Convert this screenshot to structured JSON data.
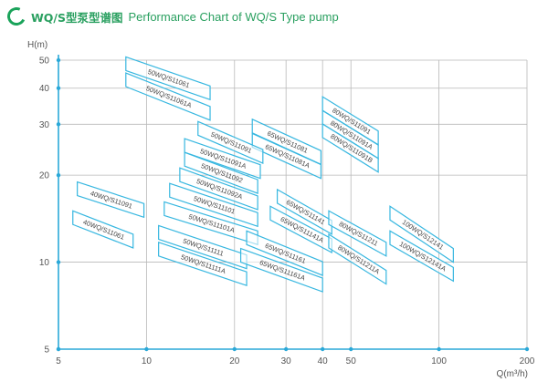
{
  "header": {
    "title_cn": "WQ/S型泵型谱图",
    "title_en": "Performance Chart of WQ/S Type pump"
  },
  "colors": {
    "axis": "#2aa8d8",
    "grid": "#b8b8b8",
    "zone": "#37b7e0",
    "title": "#2aa060"
  },
  "chart_data": {
    "type": "area",
    "title": "Performance Chart of WQ/S Type pump",
    "xlabel": "Q(m³/h)",
    "ylabel": "H(m)",
    "x_scale": "log",
    "y_scale": "log",
    "xlim": [
      5,
      200
    ],
    "ylim": [
      5,
      50
    ],
    "x_ticks": [
      5,
      10,
      20,
      30,
      40,
      50,
      100,
      200
    ],
    "y_ticks": [
      5,
      10,
      20,
      30,
      40,
      50
    ],
    "grid": true,
    "zones": [
      {
        "name": "50WQ/S11061",
        "q": [
          8.5,
          16.5
        ],
        "h_left": 46.0,
        "h_right": 36.5
      },
      {
        "name": "50WQ/S11061A",
        "q": [
          8.5,
          16.5
        ],
        "h_left": 40.5,
        "h_right": 31.0
      },
      {
        "name": "65WQ/S11081",
        "q": [
          23.0,
          39.5
        ],
        "h_left": 28.0,
        "h_right": 21.8
      },
      {
        "name": "65WQ/S11081A",
        "q": [
          23.0,
          39.5
        ],
        "h_left": 25.0,
        "h_right": 19.5
      },
      {
        "name": "80WQ/S11091",
        "q": [
          40.0,
          62.0
        ],
        "h_left": 33.5,
        "h_right": 25.5
      },
      {
        "name": "80WQ/S11091A",
        "q": [
          40.0,
          62.0
        ],
        "h_left": 30.0,
        "h_right": 22.8
      },
      {
        "name": "80WQ/S11091B",
        "q": [
          40.0,
          62.0
        ],
        "h_left": 27.0,
        "h_right": 20.5
      },
      {
        "name": "50WQ/S11091",
        "q": [
          15.0,
          25.0
        ],
        "h_left": 27.5,
        "h_right": 22.0
      },
      {
        "name": "50WQ/S11091A",
        "q": [
          13.5,
          24.5
        ],
        "h_left": 24.0,
        "h_right": 19.5
      },
      {
        "name": "50WQ/S11092",
        "q": [
          13.5,
          24.0
        ],
        "h_left": 21.5,
        "h_right": 17.3
      },
      {
        "name": "50WQ/S11092A",
        "q": [
          13.0,
          24.0
        ],
        "h_left": 19.0,
        "h_right": 15.2
      },
      {
        "name": "50WQ/S11101",
        "q": [
          12.0,
          24.0
        ],
        "h_left": 16.8,
        "h_right": 13.3
      },
      {
        "name": "50WQ/S11101A",
        "q": [
          11.5,
          24.0
        ],
        "h_left": 14.5,
        "h_right": 11.5
      },
      {
        "name": "50WQ/S11111",
        "q": [
          11.0,
          22.0
        ],
        "h_left": 12.0,
        "h_right": 9.5
      },
      {
        "name": "50WQ/S11111A",
        "q": [
          11.0,
          22.0
        ],
        "h_left": 10.5,
        "h_right": 8.3
      },
      {
        "name": "40WQ/S11091",
        "q": [
          5.8,
          9.8
        ],
        "h_left": 17.0,
        "h_right": 14.3
      },
      {
        "name": "40WQ/S11061",
        "q": [
          5.6,
          9.0
        ],
        "h_left": 13.5,
        "h_right": 11.2
      },
      {
        "name": "65WQ/S11141",
        "q": [
          28.0,
          43.0
        ],
        "h_left": 16.0,
        "h_right": 12.5
      },
      {
        "name": "65WQ/S11141A",
        "q": [
          26.5,
          43.0
        ],
        "h_left": 14.0,
        "h_right": 10.8
      },
      {
        "name": "65WQ/S11161",
        "q": [
          22.0,
          40.0
        ],
        "h_left": 11.5,
        "h_right": 9.0
      },
      {
        "name": "65WQ/S11161A",
        "q": [
          21.0,
          40.0
        ],
        "h_left": 10.0,
        "h_right": 7.9
      },
      {
        "name": "80WQ/S11211",
        "q": [
          42.0,
          66.0
        ],
        "h_left": 13.5,
        "h_right": 10.5
      },
      {
        "name": "80WQ/S11211A",
        "q": [
          42.0,
          66.0
        ],
        "h_left": 11.2,
        "h_right": 8.4
      },
      {
        "name": "100WQ/S12141",
        "q": [
          68.0,
          112.0
        ],
        "h_left": 14.0,
        "h_right": 10.0
      },
      {
        "name": "100WQ/S12141A",
        "q": [
          68.0,
          112.0
        ],
        "h_left": 11.5,
        "h_right": 8.6
      }
    ]
  }
}
